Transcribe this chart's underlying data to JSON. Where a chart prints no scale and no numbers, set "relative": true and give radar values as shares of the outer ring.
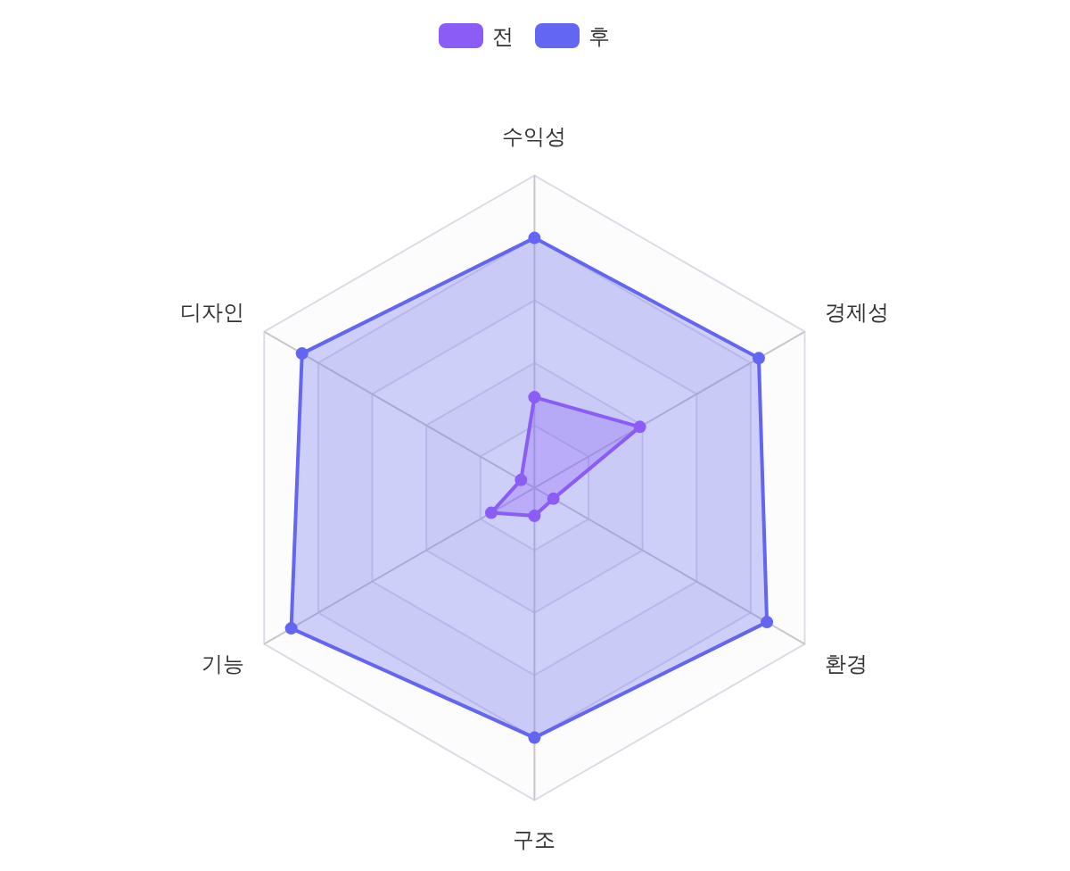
{
  "chart_data": {
    "type": "radar",
    "relative": true,
    "legend": "top",
    "marker": "circle",
    "categories": [
      "수익성",
      "경제성",
      "환경",
      "구조",
      "기능",
      "디자인"
    ],
    "series": [
      {
        "name": "전",
        "color": "#8b5cf6",
        "values": [
          0.29,
          0.39,
          0.07,
          0.09,
          0.16,
          0.05
        ]
      },
      {
        "name": "후",
        "color": "#6366f1",
        "values": [
          0.8,
          0.83,
          0.86,
          0.8,
          0.9,
          0.86
        ]
      }
    ]
  }
}
